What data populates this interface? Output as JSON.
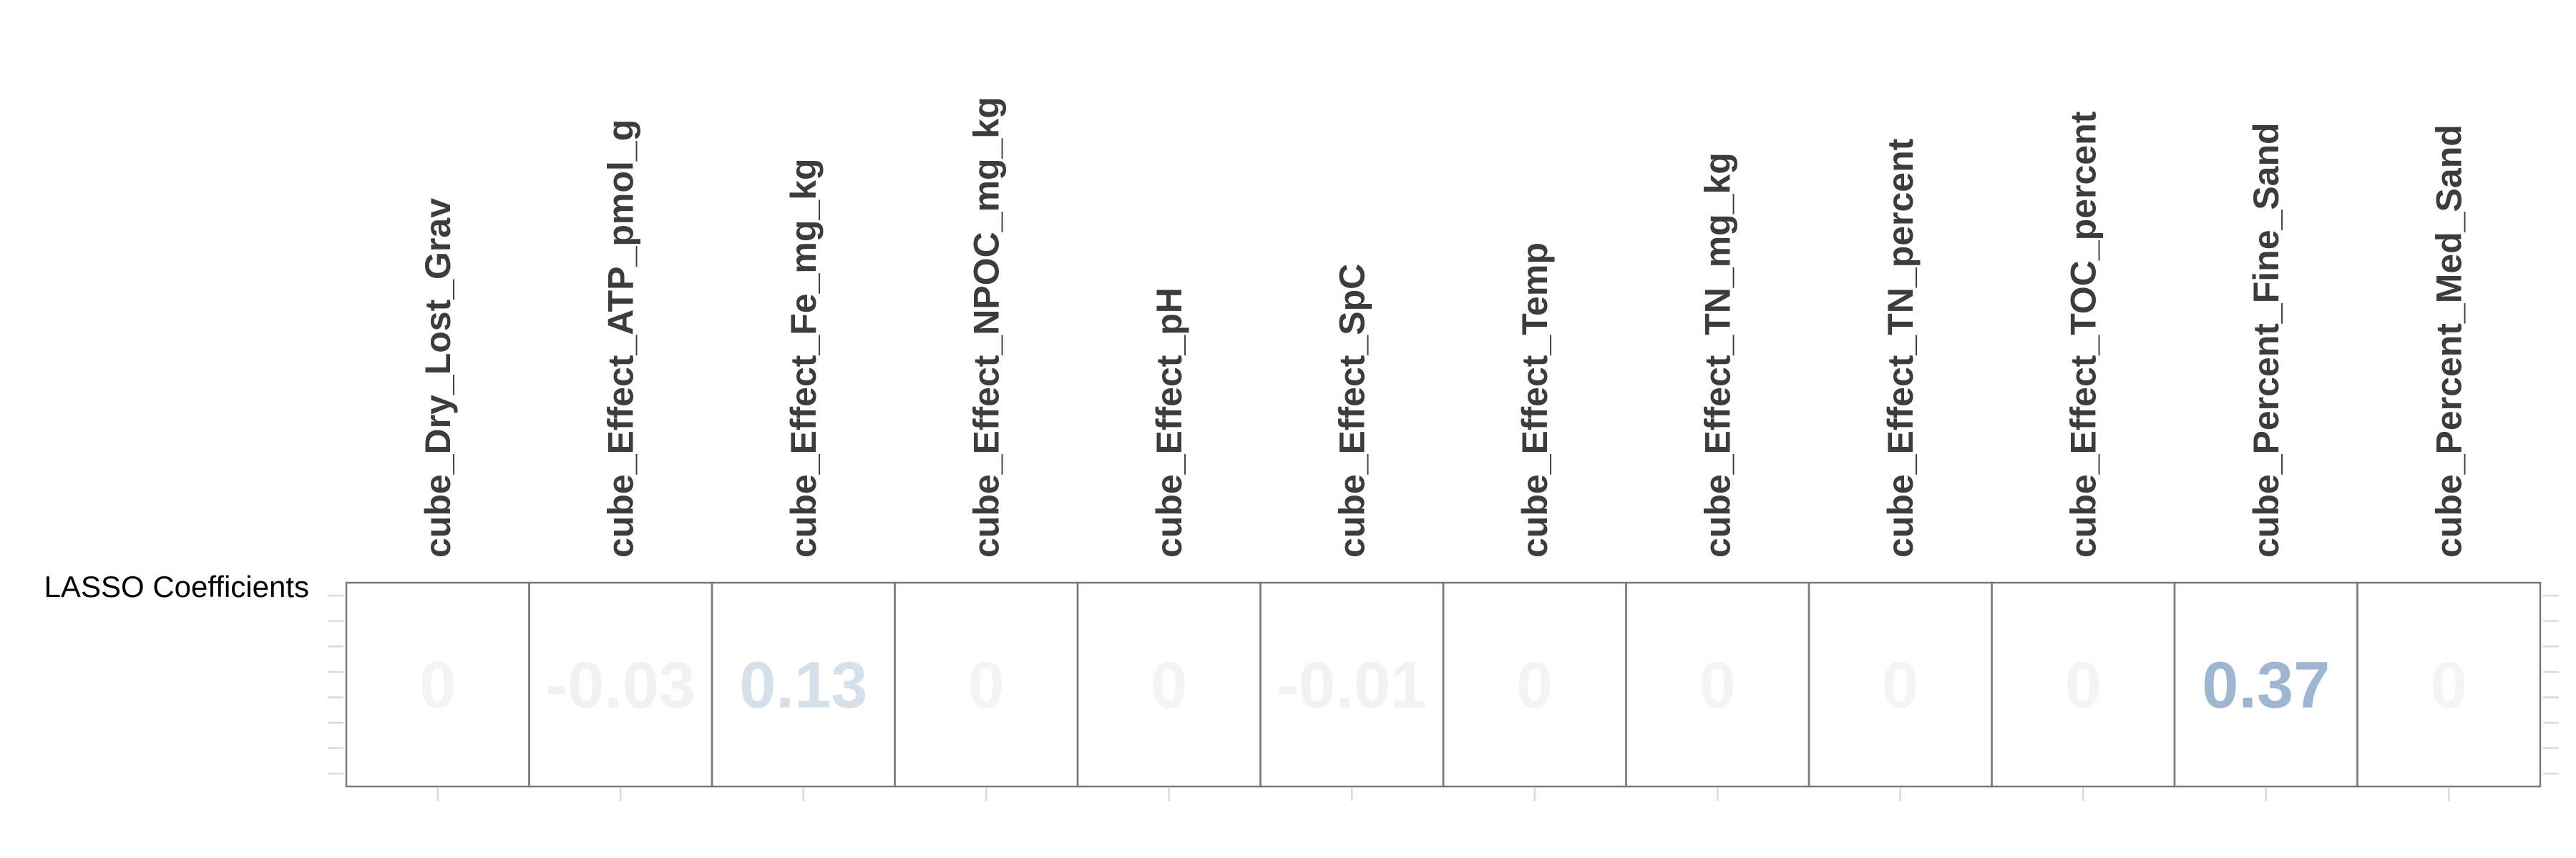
{
  "chart_data": {
    "type": "heatmap",
    "row_label": "LASSO Coefficients",
    "columns": [
      {
        "label": "cube_Dry_Lost_Grav",
        "value": 0,
        "text": "0",
        "color": "#f4f4f4"
      },
      {
        "label": "cube_Effect_ATP_pmol_g",
        "value": -0.03,
        "text": "-0.03",
        "color": "#f1f1f1"
      },
      {
        "label": "cube_Effect_Fe_mg_kg",
        "value": 0.13,
        "text": "0.13",
        "color": "#d6e0ea"
      },
      {
        "label": "cube_Effect_NPOC_mg_kg",
        "value": 0,
        "text": "0",
        "color": "#f4f4f4"
      },
      {
        "label": "cube_Effect_pH",
        "value": 0,
        "text": "0",
        "color": "#f4f4f4"
      },
      {
        "label": "cube_Effect_SpC",
        "value": -0.01,
        "text": "-0.01",
        "color": "#f2f2f2"
      },
      {
        "label": "cube_Effect_Temp",
        "value": 0,
        "text": "0",
        "color": "#f4f4f4"
      },
      {
        "label": "cube_Effect_TN_mg_kg",
        "value": 0,
        "text": "0",
        "color": "#f4f4f4"
      },
      {
        "label": "cube_Effect_TN_percent",
        "value": 0,
        "text": "0",
        "color": "#f4f4f4"
      },
      {
        "label": "cube_Effect_TOC_percent",
        "value": 0,
        "text": "0",
        "color": "#f4f4f4"
      },
      {
        "label": "cube_Percent_Fine_Sand",
        "value": 0.37,
        "text": "0.37",
        "color": "#9fb6d0"
      },
      {
        "label": "cube_Percent_Med_Sand",
        "value": 0,
        "text": "0",
        "color": "#f4f4f4"
      }
    ],
    "grid": false,
    "legend": "none"
  }
}
